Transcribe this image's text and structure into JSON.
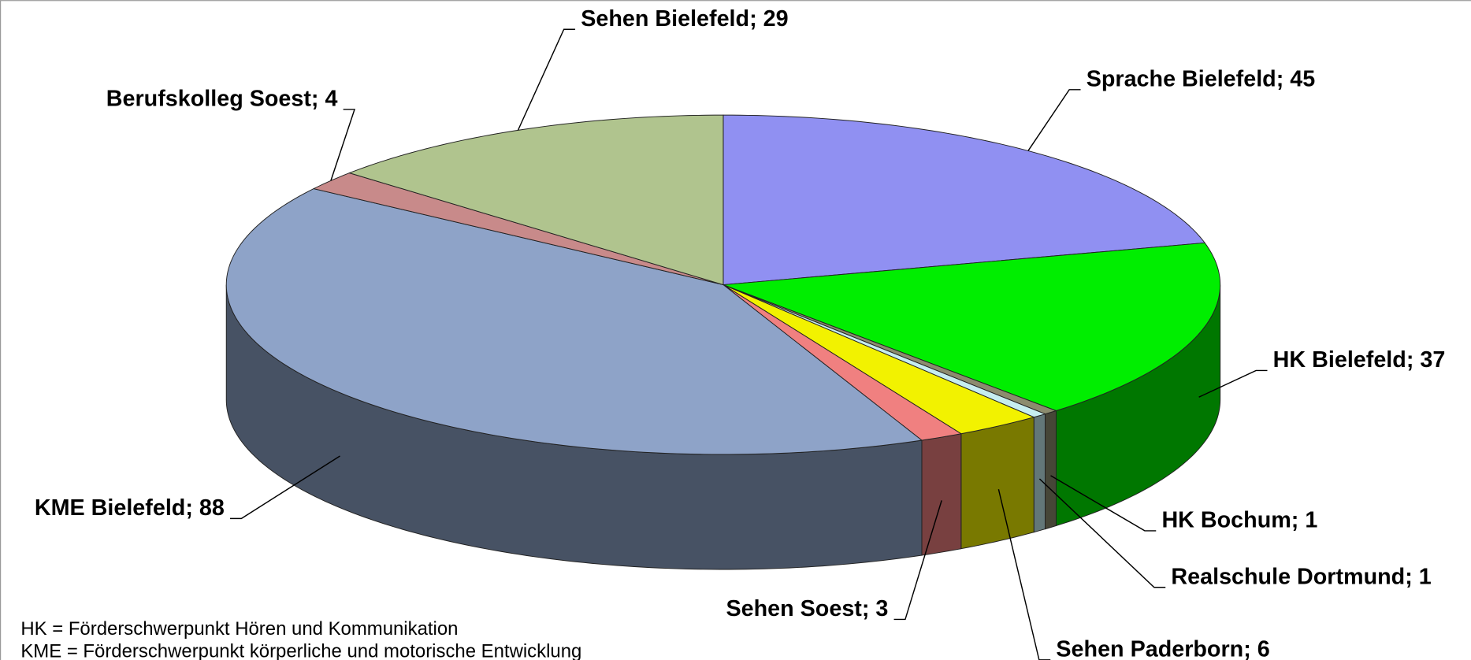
{
  "chart_data": {
    "type": "pie3d",
    "values": [
      45,
      37,
      1,
      1,
      6,
      3,
      88,
      4,
      29
    ],
    "value_labels": [
      "Sprache Bielefeld; 45",
      "HK Bielefeld; 37",
      "HK Bochum; 1",
      "Realschule Dortmund; 1",
      "Sehen Paderborn; 6",
      "Sehen Soest; 3",
      "KME Bielefeld; 88",
      "Berufskolleg Soest; 4",
      "Sehen Bielefeld; 29"
    ],
    "colors": [
      "#9090f2",
      "#00ee00",
      "#8c8c6e",
      "#c6eef0",
      "#f2f200",
      "#f08080",
      "#8ea3c8",
      "#c88a8a",
      "#b0c48e"
    ],
    "notes": [
      "HK = Förderschwerpunkt Hören und Kommunikation",
      "KME = Förderschwerpunkt körperliche und motorische Entwicklung"
    ]
  }
}
